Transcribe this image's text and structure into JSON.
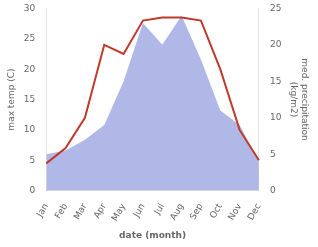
{
  "chart_data": {
    "type": "line",
    "categories": [
      "Jan",
      "Feb",
      "Mar",
      "Apr",
      "May",
      "Jun",
      "Jul",
      "Aug",
      "Sep",
      "Oct",
      "Nov",
      "Dec"
    ],
    "series": [
      {
        "type": "area",
        "axis": "y2",
        "color": "#b0b8e8",
        "values": [
          5.0,
          5.5,
          7.0,
          9.0,
          15.0,
          23.0,
          20.0,
          24.0,
          18.0,
          11.0,
          9.0,
          4.0
        ]
      },
      {
        "type": "line",
        "color": "#c0392b",
        "values": [
          4.5,
          7.0,
          12.0,
          24.0,
          22.5,
          28.0,
          28.5,
          28.5,
          28.0,
          20.0,
          10.0,
          5.0
        ]
      }
    ],
    "xlabel": "date (month)",
    "ylabel": "max temp (C)",
    "y2label": "med. precipitation\n(kg/m2)",
    "ylim": [
      0,
      30
    ],
    "yticks": [
      0,
      5,
      10,
      15,
      20,
      25,
      30
    ],
    "y2lim": [
      0,
      25
    ],
    "y2ticks": [
      0,
      5,
      10,
      15,
      20,
      25
    ],
    "grid": false
  }
}
